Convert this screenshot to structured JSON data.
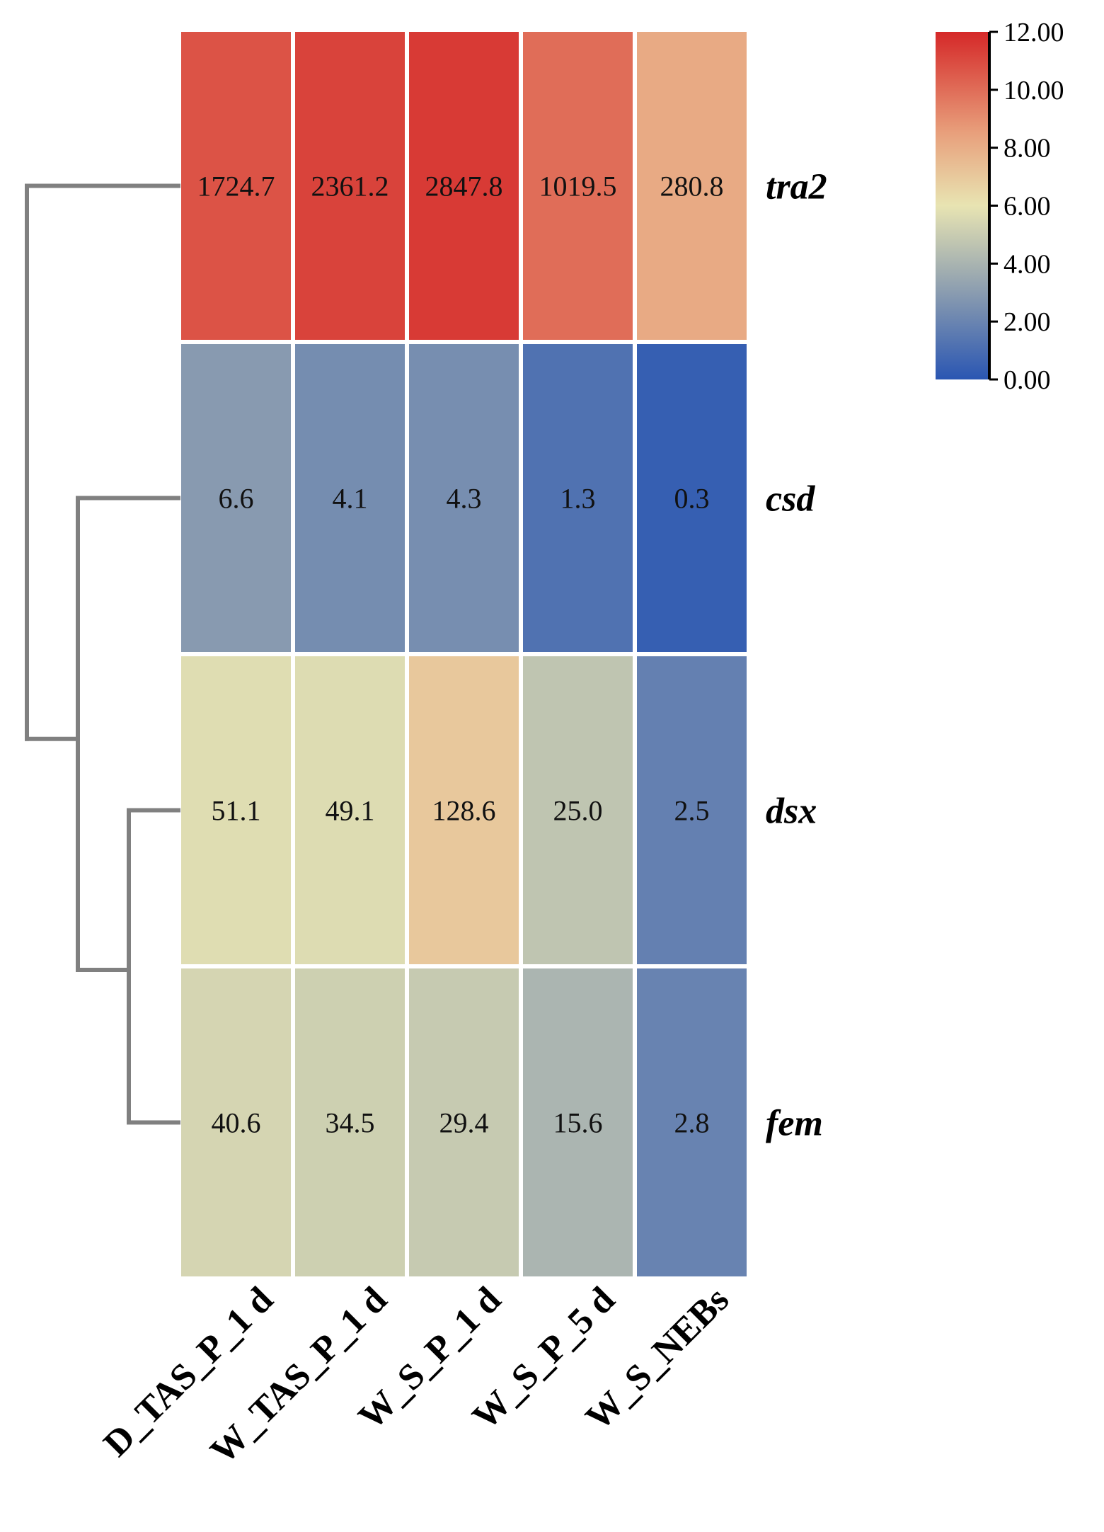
{
  "chart_data": {
    "type": "heatmap",
    "title": "",
    "rows": [
      "tra2",
      "csd",
      "dsx",
      "fem"
    ],
    "columns": [
      "D_TAS_P_1 d",
      "W_TAS_P_1 d",
      "W_S_P_1 d",
      "W_S_P_5 d",
      "W_S_NEBs"
    ],
    "values": [
      [
        1724.7,
        2361.2,
        2847.8,
        1019.5,
        280.8
      ],
      [
        6.6,
        4.1,
        4.3,
        1.3,
        0.3
      ],
      [
        51.1,
        49.1,
        128.6,
        25.0,
        2.5
      ],
      [
        40.6,
        34.5,
        29.4,
        15.6,
        2.8
      ]
    ],
    "value_labels": [
      [
        "1724.7",
        "2361.2",
        "2847.8",
        "1019.5",
        "280.8"
      ],
      [
        "6.6",
        "4.1",
        "4.3",
        "1.3",
        "0.3"
      ],
      [
        "51.1",
        "49.1",
        "128.6",
        "25.0",
        "2.5"
      ],
      [
        "40.6",
        "34.5",
        "29.4",
        "15.6",
        "2.8"
      ]
    ],
    "color_scale": {
      "transform": "log2",
      "range": [
        0,
        12
      ],
      "tick_labels": [
        "12.00",
        "10.00",
        "8.00",
        "6.00",
        "4.00",
        "2.00",
        "0.00"
      ],
      "tick_values": [
        12,
        10,
        8,
        6,
        4,
        2,
        0
      ],
      "stops": [
        {
          "value": 0,
          "color": "#2a56b2"
        },
        {
          "value": 3,
          "color": "#8a9cb0"
        },
        {
          "value": 6,
          "color": "#e8e4b2"
        },
        {
          "value": 8.5,
          "color": "#e8a07c"
        },
        {
          "value": 12,
          "color": "#d52828"
        }
      ]
    },
    "dendrogram": {
      "position": "left",
      "color": "#808080",
      "merges": [
        {
          "left": "dsx",
          "right": "fem"
        },
        {
          "left": "csd",
          "right": "dsx+fem"
        },
        {
          "left": "tra2",
          "right": "csd+dsx+fem"
        }
      ]
    },
    "legend_position": "top-right"
  }
}
